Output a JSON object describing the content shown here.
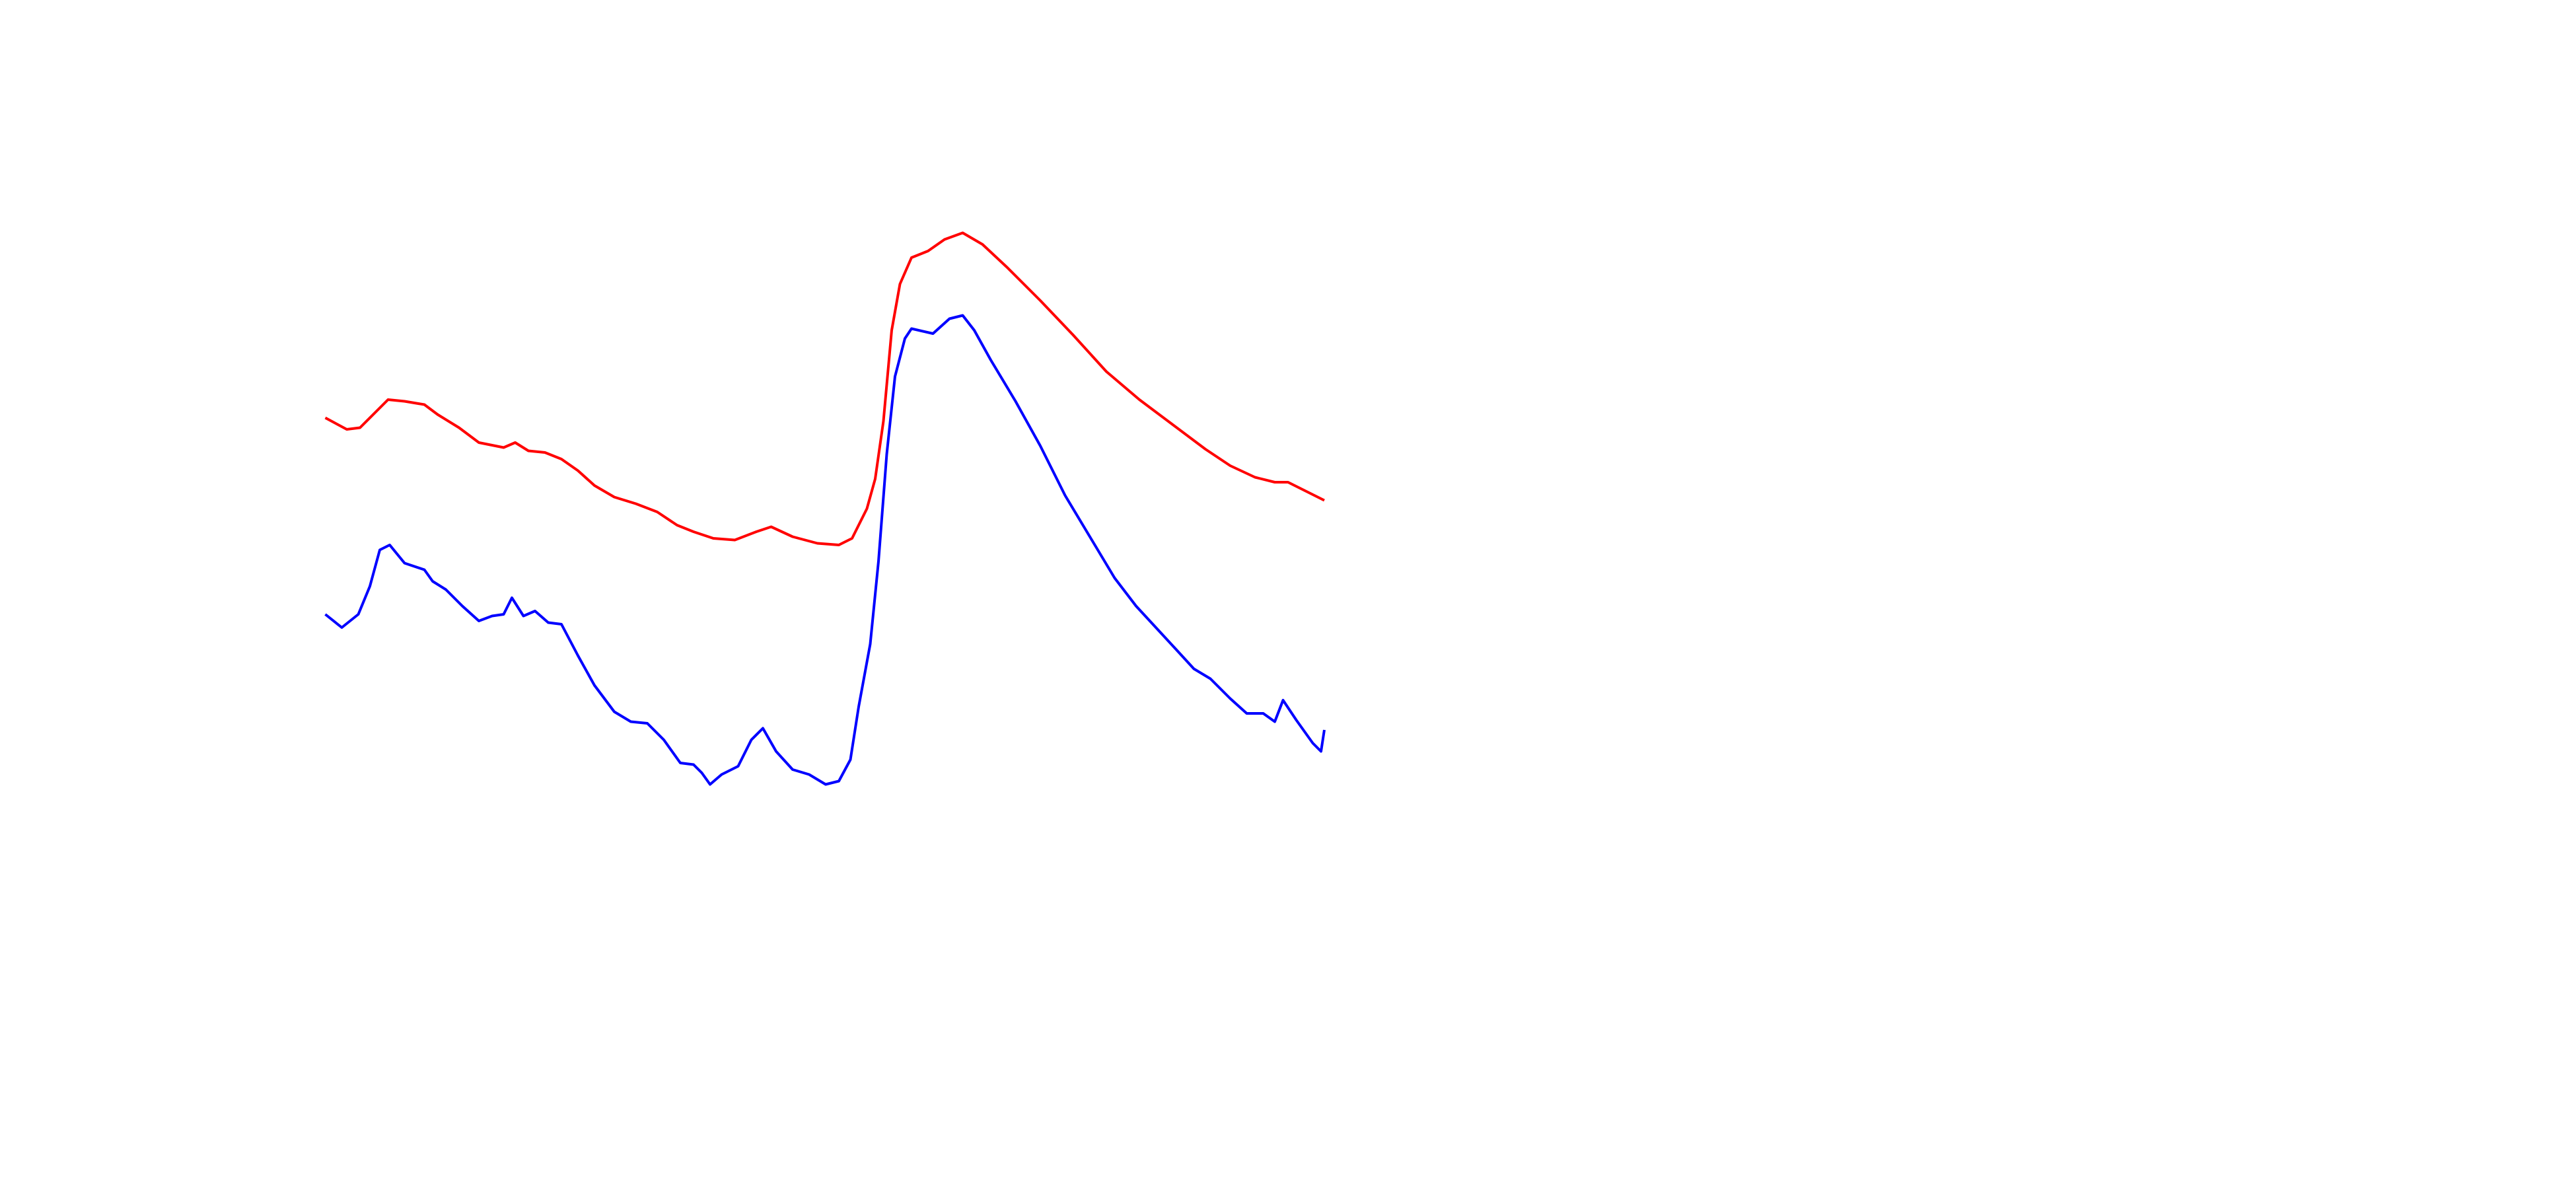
{
  "chart_data": {
    "type": "line",
    "xlim": [
      0,
      1560
    ],
    "ylim": [
      0,
      720
    ],
    "series": [
      {
        "color": "#ff0000",
        "x": [
          197,
          210,
          218,
          228,
          235,
          245,
          257,
          265,
          278,
          290,
          305,
          312,
          320,
          330,
          340,
          350,
          360,
          372,
          385,
          398,
          410,
          420,
          432,
          445,
          458,
          467,
          480,
          495,
          508,
          516,
          525,
          530,
          535,
          540,
          545,
          552,
          562,
          572,
          583,
          595,
          610,
          630,
          650,
          670,
          690,
          710,
          730,
          745,
          760,
          772,
          780,
          790,
          802
        ],
        "values": [
          467,
          460,
          461,
          471,
          478,
          477,
          475,
          469,
          461,
          452,
          449,
          452,
          447,
          446,
          442,
          435,
          426,
          419,
          415,
          410,
          402,
          398,
          394,
          393,
          398,
          401,
          395,
          391,
          390,
          394,
          412,
          430,
          465,
          520,
          548,
          564,
          568,
          575,
          579,
          572,
          558,
          538,
          517,
          495,
          478,
          463,
          448,
          438,
          431,
          428,
          428,
          423,
          417
        ]
      },
      {
        "color": "#0000ff",
        "x": [
          197,
          207,
          217,
          224,
          230,
          236,
          245,
          257,
          262,
          270,
          280,
          290,
          298,
          305,
          310,
          317,
          324,
          332,
          340,
          350,
          360,
          372,
          382,
          392,
          402,
          412,
          420,
          425,
          430,
          437,
          447,
          455,
          462,
          470,
          480,
          490,
          500,
          508,
          515,
          520,
          527,
          532,
          537,
          542,
          548,
          552,
          565,
          575,
          583,
          590,
          600,
          615,
          630,
          645,
          660,
          675,
          688,
          700,
          712,
          723,
          733,
          745,
          755,
          765,
          772,
          777,
          785,
          795,
          800,
          802
        ],
        "values": [
          348,
          340,
          348,
          365,
          387,
          390,
          379,
          375,
          368,
          363,
          353,
          344,
          347,
          348,
          358,
          347,
          350,
          343,
          342,
          323,
          305,
          289,
          283,
          282,
          272,
          258,
          257,
          252,
          245,
          251,
          256,
          272,
          279,
          265,
          254,
          251,
          245,
          247,
          260,
          292,
          330,
          380,
          445,
          492,
          515,
          521,
          518,
          527,
          529,
          520,
          502,
          477,
          450,
          420,
          395,
          370,
          353,
          340,
          327,
          315,
          309,
          297,
          288,
          288,
          283,
          296,
          284,
          270,
          265,
          278
        ]
      }
    ]
  }
}
